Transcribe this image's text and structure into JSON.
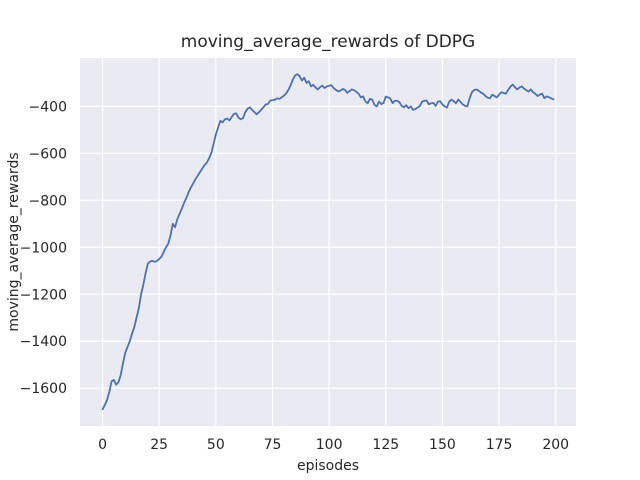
{
  "figure": {
    "background": "#ffffff",
    "axes_background": "#eaeaf2",
    "grid_color": "#ffffff",
    "text_color": "#262626",
    "line_color": "#4c72b0"
  },
  "chart_data": {
    "type": "line",
    "title": "moving_average_rewards of DDPG",
    "xlabel": "episodes",
    "ylabel": "moving_average_rewards",
    "grid": true,
    "legend_position": "none",
    "xlim": [
      -9.95,
      208.95
    ],
    "ylim": [
      -1761,
      -194
    ],
    "x_ticks": [
      0,
      25,
      50,
      75,
      100,
      125,
      150,
      175,
      200
    ],
    "x_tick_labels": [
      "0",
      "25",
      "50",
      "75",
      "100",
      "125",
      "150",
      "175",
      "200"
    ],
    "y_ticks": [
      -400,
      -600,
      -800,
      -1000,
      -1200,
      -1400,
      -1600
    ],
    "y_tick_labels": [
      "−400",
      "−600",
      "−800",
      "−1000",
      "−1200",
      "−1400",
      "−1600"
    ],
    "series": [
      {
        "name": "moving_average_rewards",
        "color": "#4c72b0",
        "x": [
          0,
          1,
          2,
          3,
          4,
          5,
          6,
          7,
          8,
          9,
          10,
          11,
          12,
          13,
          14,
          15,
          16,
          17,
          18,
          19,
          20,
          21,
          22,
          23,
          24,
          25,
          26,
          27,
          28,
          29,
          30,
          31,
          32,
          33,
          34,
          35,
          36,
          37,
          38,
          39,
          40,
          41,
          42,
          43,
          44,
          45,
          46,
          47,
          48,
          49,
          50,
          51,
          52,
          53,
          54,
          55,
          56,
          57,
          58,
          59,
          60,
          61,
          62,
          63,
          64,
          65,
          66,
          67,
          68,
          69,
          70,
          71,
          72,
          73,
          74,
          75,
          76,
          77,
          78,
          79,
          80,
          81,
          82,
          83,
          84,
          85,
          86,
          87,
          88,
          89,
          90,
          91,
          92,
          93,
          94,
          95,
          96,
          97,
          98,
          99,
          100,
          101,
          102,
          103,
          104,
          105,
          106,
          107,
          108,
          109,
          110,
          111,
          112,
          113,
          114,
          115,
          116,
          117,
          118,
          119,
          120,
          121,
          122,
          123,
          124,
          125,
          126,
          127,
          128,
          129,
          130,
          131,
          132,
          133,
          134,
          135,
          136,
          137,
          138,
          139,
          140,
          141,
          142,
          143,
          144,
          145,
          146,
          147,
          148,
          149,
          150,
          151,
          152,
          153,
          154,
          155,
          156,
          157,
          158,
          159,
          160,
          161,
          162,
          163,
          164,
          165,
          166,
          167,
          168,
          169,
          170,
          171,
          172,
          173,
          174,
          175,
          176,
          177,
          178,
          179,
          180,
          181,
          182,
          183,
          184,
          185,
          186,
          187,
          188,
          189,
          190,
          191,
          192,
          193,
          194,
          195,
          196,
          197,
          198,
          199
        ],
        "y": [
          -1690,
          -1672,
          -1650,
          -1615,
          -1570,
          -1565,
          -1585,
          -1575,
          -1545,
          -1495,
          -1450,
          -1425,
          -1400,
          -1368,
          -1340,
          -1300,
          -1260,
          -1200,
          -1160,
          -1110,
          -1070,
          -1060,
          -1058,
          -1062,
          -1058,
          -1050,
          -1040,
          -1020,
          -1000,
          -985,
          -950,
          -900,
          -915,
          -880,
          -858,
          -835,
          -810,
          -790,
          -765,
          -745,
          -728,
          -710,
          -695,
          -680,
          -665,
          -650,
          -640,
          -622,
          -598,
          -560,
          -520,
          -490,
          -462,
          -468,
          -455,
          -452,
          -460,
          -445,
          -432,
          -430,
          -448,
          -455,
          -450,
          -425,
          -410,
          -404,
          -415,
          -424,
          -434,
          -425,
          -415,
          -404,
          -392,
          -390,
          -375,
          -374,
          -372,
          -366,
          -368,
          -362,
          -355,
          -345,
          -330,
          -310,
          -285,
          -268,
          -263,
          -272,
          -290,
          -278,
          -300,
          -293,
          -315,
          -308,
          -320,
          -328,
          -318,
          -312,
          -322,
          -315,
          -312,
          -310,
          -322,
          -330,
          -336,
          -333,
          -326,
          -330,
          -343,
          -335,
          -328,
          -331,
          -338,
          -346,
          -362,
          -357,
          -379,
          -387,
          -368,
          -371,
          -393,
          -400,
          -380,
          -390,
          -386,
          -358,
          -362,
          -367,
          -386,
          -376,
          -376,
          -382,
          -398,
          -404,
          -395,
          -408,
          -400,
          -415,
          -412,
          -405,
          -399,
          -380,
          -376,
          -375,
          -391,
          -387,
          -385,
          -398,
          -380,
          -378,
          -392,
          -400,
          -405,
          -380,
          -371,
          -378,
          -387,
          -371,
          -381,
          -392,
          -398,
          -400,
          -366,
          -340,
          -330,
          -328,
          -333,
          -341,
          -346,
          -356,
          -363,
          -366,
          -350,
          -356,
          -362,
          -350,
          -340,
          -343,
          -346,
          -330,
          -316,
          -307,
          -318,
          -328,
          -320,
          -315,
          -324,
          -331,
          -337,
          -328,
          -340,
          -346,
          -356,
          -350,
          -346,
          -365,
          -357,
          -361,
          -366,
          -370
        ]
      }
    ]
  }
}
